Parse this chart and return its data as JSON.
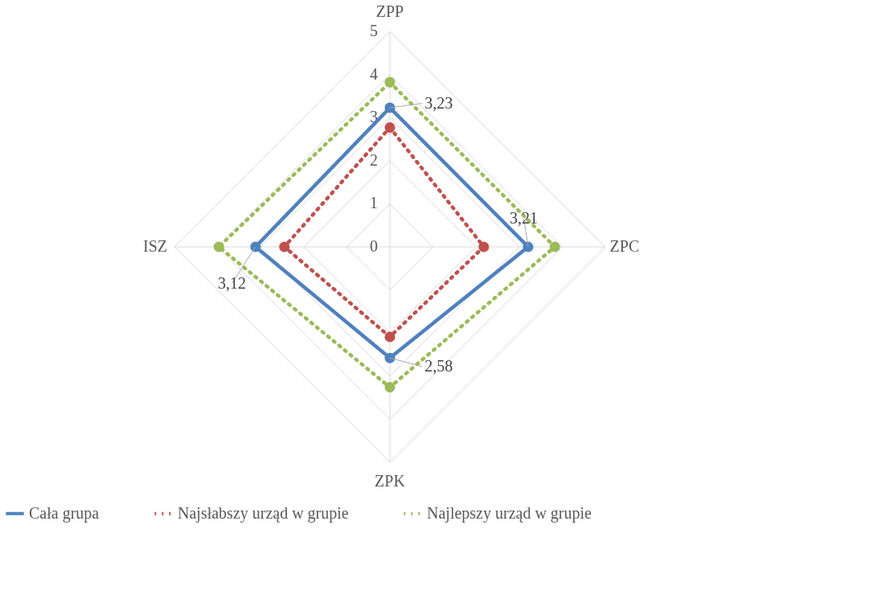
{
  "chart_data": {
    "type": "radar",
    "categories": [
      "ZPP",
      "ZPC",
      "ZPK",
      "ISZ"
    ],
    "ylim": [
      0,
      5
    ],
    "yticks": [
      0,
      1,
      2,
      3,
      4,
      5
    ],
    "grid": true,
    "legend": "bottom",
    "marker": "circle",
    "series": [
      {
        "name": "Cała grupa",
        "color": "#4f81bd",
        "line_style": "solid",
        "values": [
          3.23,
          3.21,
          2.58,
          3.12
        ],
        "value_labels": [
          "3,23",
          "3,21",
          "2,58",
          "3,12"
        ]
      },
      {
        "name": "Najsłabszy urząd w grupie",
        "color": "#c0504d",
        "line_style": "dotted",
        "values": [
          2.77,
          2.18,
          2.09,
          2.45
        ]
      },
      {
        "name": "Najlepszy urząd w grupie",
        "color": "#9bbb59",
        "line_style": "dotted",
        "values": [
          3.82,
          3.83,
          3.26,
          3.97
        ]
      }
    ]
  }
}
